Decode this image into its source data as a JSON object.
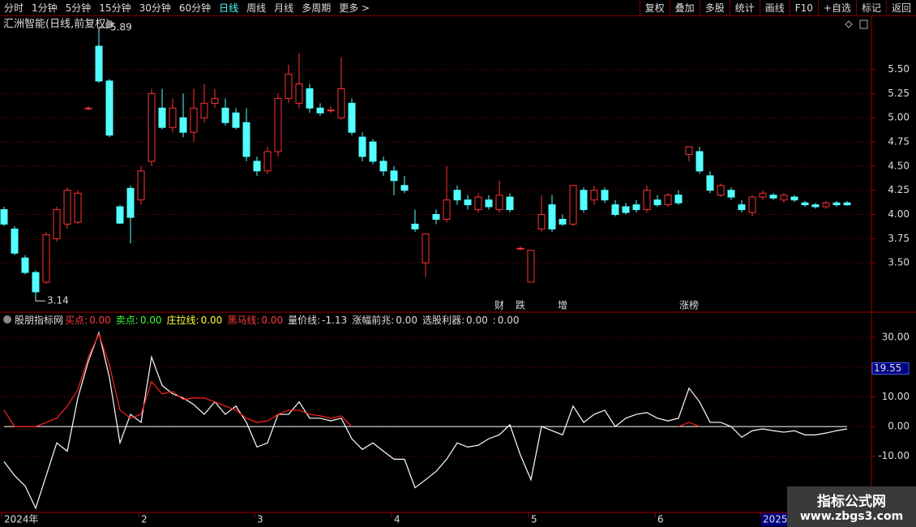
{
  "toolbar": {
    "left": [
      "分时",
      "1分钟",
      "5分钟",
      "15分钟",
      "30分钟",
      "60分钟",
      "日线",
      "周线",
      "月线",
      "多周期",
      "更多 >"
    ],
    "active_index": 6,
    "right": [
      "复权",
      "叠加",
      "多股",
      "统计",
      "画线",
      "F10",
      "+自选",
      "标记",
      "返回"
    ]
  },
  "chart_data": [
    {
      "type": "candlestick",
      "title": "汇洲智能(日线,前复权)",
      "up_color": "#ff3232",
      "down_color": "#54ffff",
      "open": [
        4.05,
        3.85,
        3.55,
        3.4,
        3.3,
        3.75,
        3.9,
        3.92,
        5.1,
        5.74,
        5.38,
        4.08,
        4.27,
        4.15,
        4.55,
        5.1,
        4.9,
        5.0,
        4.85,
        5.0,
        5.15,
        5.1,
        5.05,
        4.95,
        4.55,
        4.45,
        4.65,
        5.2,
        5.15,
        5.3,
        5.1,
        5.08,
        5.0,
        5.15,
        4.8,
        4.75,
        4.55,
        4.45,
        4.3,
        3.9,
        3.5,
        4.0,
        3.95,
        4.25,
        4.15,
        4.05,
        4.15,
        4.05,
        4.18,
        3.65,
        3.3,
        3.85,
        4.1,
        3.95,
        3.9,
        4.25,
        4.15,
        4.25,
        4.1,
        4.08,
        4.1,
        4.05,
        4.15,
        4.1,
        4.2,
        4.62,
        4.65,
        4.4,
        4.2,
        4.25,
        4.1,
        4.02,
        4.18,
        4.2,
        4.15,
        4.18,
        4.12,
        4.1,
        4.08,
        4.12,
        4.12
      ],
      "high": [
        4.08,
        3.88,
        3.58,
        3.42,
        3.82,
        4.08,
        4.28,
        4.25,
        5.12,
        5.89,
        5.4,
        4.1,
        4.3,
        4.5,
        5.3,
        5.3,
        5.2,
        5.25,
        5.3,
        5.35,
        5.3,
        5.2,
        5.1,
        5.1,
        4.6,
        4.7,
        5.25,
        5.55,
        5.67,
        5.35,
        5.15,
        5.12,
        5.63,
        5.2,
        4.85,
        4.78,
        4.6,
        4.5,
        4.4,
        4.05,
        3.8,
        4.05,
        4.5,
        4.3,
        4.2,
        4.22,
        4.2,
        4.35,
        4.22,
        3.67,
        3.63,
        4.2,
        4.2,
        4.0,
        4.3,
        4.28,
        4.3,
        4.28,
        4.15,
        4.12,
        4.15,
        4.3,
        4.2,
        4.22,
        4.25,
        4.7,
        4.7,
        4.45,
        4.32,
        4.28,
        4.15,
        4.2,
        4.25,
        4.22,
        4.22,
        4.2,
        4.14,
        4.12,
        4.14,
        4.14,
        4.14
      ],
      "low": [
        3.88,
        3.58,
        3.38,
        3.14,
        3.28,
        3.72,
        3.85,
        3.9,
        5.08,
        5.36,
        4.8,
        3.9,
        3.7,
        4.1,
        4.5,
        4.88,
        4.85,
        4.8,
        4.75,
        4.95,
        5.1,
        4.92,
        4.88,
        4.55,
        4.4,
        4.42,
        4.6,
        5.15,
        5.1,
        5.05,
        5.02,
        5.05,
        4.98,
        4.82,
        4.55,
        4.52,
        4.4,
        4.2,
        4.22,
        3.82,
        3.35,
        3.9,
        3.92,
        4.1,
        4.05,
        4.02,
        4.05,
        4.02,
        4.02,
        3.63,
        3.3,
        3.82,
        3.82,
        3.88,
        3.88,
        4.02,
        4.1,
        4.12,
        3.98,
        4.0,
        4.02,
        4.02,
        4.08,
        4.08,
        4.1,
        4.55,
        4.42,
        4.22,
        4.18,
        4.15,
        4.02,
        3.98,
        4.15,
        4.15,
        4.12,
        4.13,
        4.08,
        4.06,
        4.06,
        4.08,
        4.09
      ],
      "close": [
        3.9,
        3.6,
        3.4,
        3.2,
        3.79,
        4.05,
        4.25,
        4.22,
        5.1,
        5.38,
        4.82,
        3.91,
        3.97,
        4.45,
        5.25,
        4.9,
        5.1,
        4.85,
        5.1,
        5.15,
        5.2,
        4.95,
        4.9,
        4.6,
        4.45,
        4.65,
        5.2,
        5.45,
        5.35,
        5.1,
        5.05,
        5.08,
        5.3,
        4.85,
        4.6,
        4.55,
        4.45,
        4.35,
        4.25,
        3.85,
        3.8,
        3.95,
        4.15,
        4.15,
        4.1,
        4.18,
        4.08,
        4.2,
        4.05,
        3.65,
        3.63,
        4.0,
        3.85,
        3.9,
        4.3,
        4.05,
        4.25,
        4.15,
        4.0,
        4.02,
        4.05,
        4.25,
        4.1,
        4.2,
        4.12,
        4.7,
        4.45,
        4.25,
        4.3,
        4.18,
        4.05,
        4.18,
        4.22,
        4.17,
        4.2,
        4.15,
        4.1,
        4.08,
        4.12,
        4.1,
        4.1
      ],
      "ylim": [
        2.99,
        6.05
      ],
      "yticks": [
        {
          "value": 3.5,
          "label": "3.50"
        },
        3.75,
        {
          "value": 4,
          "label": "4.00"
        },
        4.25,
        {
          "value": 4.5,
          "label": "4.50"
        },
        4.75,
        {
          "value": 5,
          "label": "5.00"
        },
        5.25,
        {
          "value": 5.5,
          "label": "5.50"
        }
      ],
      "grid": true,
      "events": [
        {
          "index": 47,
          "label": "财",
          "color": "#4aa8ff"
        },
        {
          "index": 49,
          "label": "跌",
          "color": "#3cff3c"
        },
        {
          "index": 53,
          "label": "增",
          "color": "#ff4040"
        },
        {
          "index": 65,
          "label": "涨榜",
          "color": "#ff8c3c"
        }
      ]
    },
    {
      "type": "line",
      "indicator_name": "股朋指标网",
      "readouts": {
        "names": [
          "买点:",
          "卖点:",
          "庄拉线:",
          "黑马线:",
          "量价线:",
          "涨幅前兆:",
          "选股利器:",
          ":"
        ],
        "values": [
          0,
          0,
          0,
          0,
          -1.13,
          0,
          0,
          0
        ],
        "value_labels": [
          "0.00",
          "0.00",
          "0.00",
          "0.00",
          "-1.13",
          "0.00",
          "0.00",
          "0.00"
        ],
        "colors": [
          "#ff3c3c",
          "#3cff3c",
          "#ffff3c",
          "#ff3c3c",
          "#dddddd",
          "#dddddd",
          "#dddddd",
          "#dddddd"
        ]
      },
      "series": [
        {
          "color": "#ffffff",
          "values": [
            -11.8,
            -16.5,
            -20,
            -27.5,
            -16.5,
            -5.5,
            -8.3,
            9.6,
            22,
            31.6,
            16.5,
            -5.5,
            4.1,
            1.4,
            23.4,
            13.8,
            11,
            9.6,
            7.4,
            4.1,
            8.3,
            4.1,
            6.9,
            1.4,
            -6.9,
            -5.5,
            4.1,
            4.1,
            8.3,
            2.8,
            2.8,
            1.9,
            2.8,
            -4.1,
            -7.7,
            -5.5,
            -8.3,
            -11,
            -11,
            -20.6,
            -17.9,
            -15.1,
            -11,
            -5.5,
            -6.9,
            -6.3,
            -4.1,
            -2.8,
            0.6,
            -9.6,
            -17.9,
            0,
            -1.4,
            -2.8,
            6.9,
            1.4,
            4.1,
            5.5,
            0,
            2.8,
            4.1,
            4.7,
            2.8,
            1.9,
            2.8,
            12.9,
            8.3,
            1.4,
            1.4,
            0,
            -3.6,
            -1.4,
            -0.8,
            -1.4,
            -1.9,
            -1.4,
            -2.8,
            -2.8,
            -2.2,
            -1.4,
            -0.8
          ]
        },
        {
          "color": "#ff2020",
          "values": [
            5.5,
            0,
            0,
            0,
            1.4,
            2.8,
            6.9,
            12.4,
            23.4,
            31.1,
            20.6,
            5.5,
            2.8,
            4.1,
            15.1,
            11,
            11.8,
            9.1,
            9.6,
            9.6,
            8.3,
            6.9,
            5.5,
            2.8,
            1.4,
            1.9,
            4.1,
            5.5,
            5.5,
            4.1,
            3.6,
            2.8,
            3.6,
            0,
            null,
            null,
            null,
            null,
            null,
            null,
            null,
            null,
            null,
            null,
            null,
            null,
            null,
            null,
            null,
            null,
            null,
            null,
            null,
            null,
            null,
            null,
            null,
            null,
            null,
            null,
            null,
            null,
            null,
            null,
            0,
            1.4,
            0,
            null,
            null,
            null,
            null,
            null,
            null,
            null,
            null,
            null,
            null,
            null,
            null,
            null,
            null
          ]
        }
      ],
      "ylim": [
        -28.9,
        38.5
      ],
      "yticks": [
        {
          "value": -10,
          "label": "-10.00"
        },
        {
          "value": 0,
          "label": "0.00"
        },
        {
          "value": 10,
          "label": "10.00"
        },
        {
          "value": 20,
          "label": "20.00"
        },
        {
          "value": 30,
          "label": "30.00"
        }
      ],
      "grid": true,
      "marker": 19.55,
      "xticks": [
        {
          "value": 0,
          "label": "2024年"
        },
        {
          "value": 13,
          "label": "2"
        },
        {
          "value": 24,
          "label": "3"
        },
        {
          "value": 37,
          "label": "4"
        },
        {
          "value": 50,
          "label": "5"
        },
        {
          "value": 62,
          "label": "6"
        },
        {
          "value": 72,
          "label": "2025/0"
        }
      ]
    }
  ],
  "watermark": {
    "title": "指标公式网",
    "url": "www.zbgs3.com"
  }
}
